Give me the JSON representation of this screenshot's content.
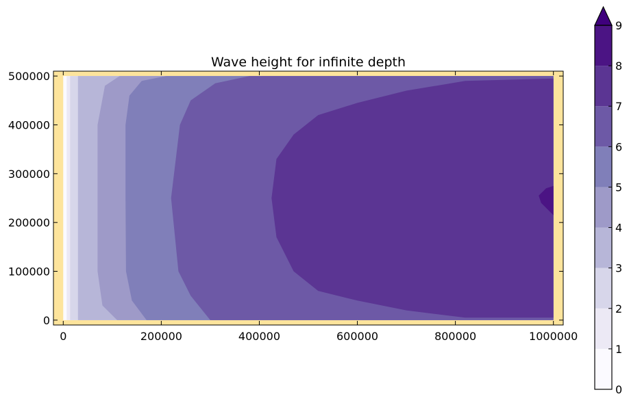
{
  "chart_data": {
    "type": "contourf",
    "title": "Wave height for infinite depth",
    "xlabel": "",
    "ylabel": "",
    "x_ticks": [
      0,
      200000,
      400000,
      600000,
      800000,
      1000000
    ],
    "y_ticks": [
      0,
      100000,
      200000,
      300000,
      400000,
      500000
    ],
    "xlim": [
      -20000,
      1020000
    ],
    "ylim": [
      -10000,
      510000
    ],
    "domain_x": [
      0,
      1000000
    ],
    "domain_y": [
      0,
      500000
    ],
    "land_color": "#fde49c",
    "levels": [
      0,
      1,
      2,
      3,
      4,
      5,
      6,
      7,
      8,
      9
    ],
    "colorbar_ticks": [
      "0",
      "1",
      "2",
      "3",
      "4",
      "5",
      "6",
      "7",
      "8",
      "9"
    ],
    "colorbar_extend": "max",
    "band_colors": [
      "#fbfaff",
      "#ece9f5",
      "#d7d6ea",
      "#b7b6d8",
      "#9e9ac8",
      "#807fb9",
      "#6d59a6",
      "#5b3593",
      "#4b1484"
    ],
    "over_color": "#3f007d",
    "contour_edges_x": [
      {
        "level": 1,
        "x": 7000
      },
      {
        "level": 2,
        "x": 14000
      },
      {
        "level": 3,
        "x": 30000
      },
      {
        "level": 4,
        "x": [
          [
            0,
            110000
          ],
          [
            30000,
            80000
          ],
          [
            100000,
            70000
          ],
          [
            250000,
            70000
          ],
          [
            400000,
            70000
          ],
          [
            480000,
            85000
          ],
          [
            500000,
            115000
          ]
        ]
      },
      {
        "level": 5,
        "x": [
          [
            0,
            170000
          ],
          [
            40000,
            140000
          ],
          [
            100000,
            128000
          ],
          [
            250000,
            127000
          ],
          [
            400000,
            127000
          ],
          [
            460000,
            135000
          ],
          [
            490000,
            160000
          ],
          [
            500000,
            210000
          ]
        ]
      },
      {
        "level": 6,
        "x": [
          [
            0,
            300000
          ],
          [
            50000,
            260000
          ],
          [
            100000,
            235000
          ],
          [
            250000,
            220000
          ],
          [
            400000,
            238000
          ],
          [
            450000,
            260000
          ],
          [
            485000,
            310000
          ],
          [
            500000,
            380000
          ]
        ]
      }
    ],
    "contour_7": [
      [
        1000000,
        5000
      ],
      [
        820000,
        5000
      ],
      [
        700000,
        20000
      ],
      [
        600000,
        40000
      ],
      [
        520000,
        60000
      ],
      [
        470000,
        100000
      ],
      [
        435000,
        170000
      ],
      [
        425000,
        250000
      ],
      [
        435000,
        330000
      ],
      [
        470000,
        380000
      ],
      [
        520000,
        420000
      ],
      [
        600000,
        445000
      ],
      [
        700000,
        470000
      ],
      [
        820000,
        490000
      ],
      [
        1000000,
        495000
      ]
    ],
    "contour_8": [
      [
        1000000,
        215000
      ],
      [
        975000,
        240000
      ],
      [
        970000,
        255000
      ],
      [
        985000,
        270000
      ],
      [
        1000000,
        275000
      ]
    ]
  }
}
